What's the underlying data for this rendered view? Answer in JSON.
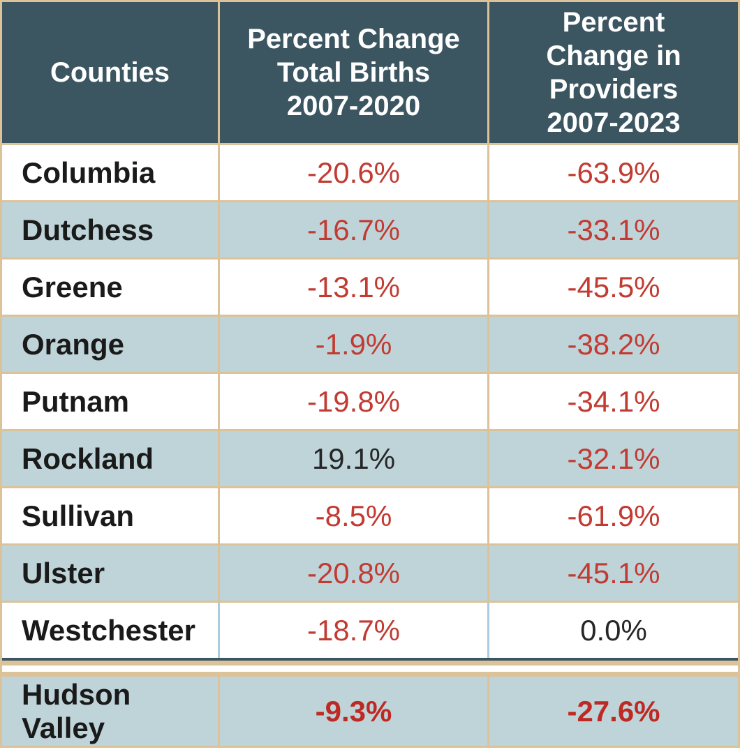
{
  "table": {
    "headers": {
      "counties": "Counties",
      "births": "Percent Change\nTotal Births\n2007-2020",
      "providers": "Percent\nChange in\nProviders\n2007-2023"
    },
    "rows": [
      {
        "county": "Columbia",
        "births": "-20.6%",
        "providers": "-63.9%"
      },
      {
        "county": "Dutchess",
        "births": "-16.7%",
        "providers": "-33.1%"
      },
      {
        "county": "Greene",
        "births": "-13.1%",
        "providers": "-45.5%"
      },
      {
        "county": "Orange",
        "births": "-1.9%",
        "providers": "-38.2%"
      },
      {
        "county": "Putnam",
        "births": "-19.8%",
        "providers": "-34.1%"
      },
      {
        "county": "Rockland",
        "births": "19.1%",
        "providers": "-32.1%"
      },
      {
        "county": "Sullivan",
        "births": "-8.5%",
        "providers": "-61.9%"
      },
      {
        "county": "Ulster",
        "births": "-20.8%",
        "providers": "-45.1%"
      },
      {
        "county": "Westchester",
        "births": "-18.7%",
        "providers": "0.0%"
      }
    ],
    "summary": {
      "county": "Hudson Valley",
      "births": "-9.3%",
      "providers": "-27.6%"
    }
  },
  "colors": {
    "header_bg": "#3C5661",
    "header_text": "#FFFFFF",
    "row_alt_bg": "#BFD4D9",
    "border_tan": "#DCC299",
    "teal_rule": "#3C5661",
    "westchester_separator": "#ADCBE0",
    "value_negative_red": "#C13B32",
    "summary_value_red": "#BE2A23",
    "value_neutral": "#262626",
    "county_text": "#1A1A1A"
  },
  "chart_data": {
    "type": "table",
    "columns": [
      "Counties",
      "Percent Change Total Births 2007-2020",
      "Percent Change in Providers 2007-2023"
    ],
    "rows": [
      [
        "Columbia",
        -20.6,
        -63.9
      ],
      [
        "Dutchess",
        -16.7,
        -33.1
      ],
      [
        "Greene",
        -13.1,
        -45.5
      ],
      [
        "Orange",
        -1.9,
        -38.2
      ],
      [
        "Putnam",
        -19.8,
        -34.1
      ],
      [
        "Rockland",
        19.1,
        -32.1
      ],
      [
        "Sullivan",
        -8.5,
        -61.9
      ],
      [
        "Ulster",
        -20.8,
        -45.1
      ],
      [
        "Westchester",
        -18.7,
        0.0
      ],
      [
        "Hudson Valley",
        -9.3,
        -27.6
      ]
    ],
    "units": "percent",
    "notes": "Negative values rendered in red; non-negative values in black; Hudson Valley is a bold summary row"
  }
}
